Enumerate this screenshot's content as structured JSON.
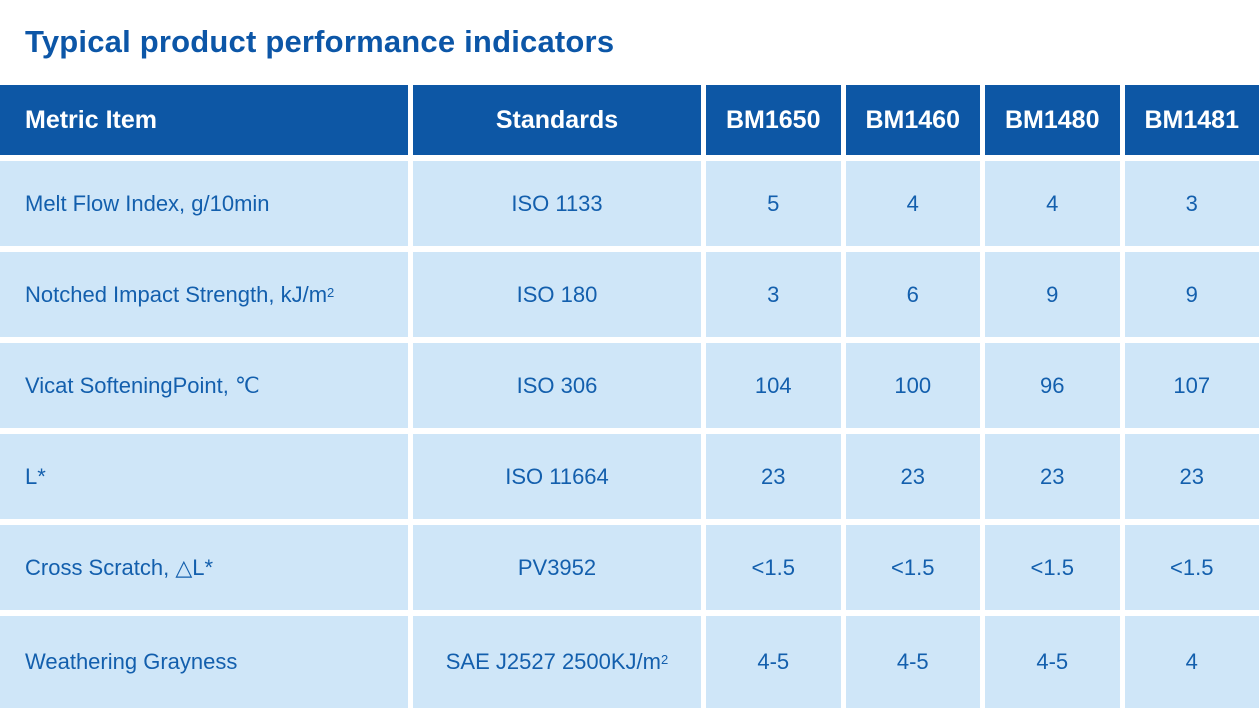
{
  "title": "Typical product performance indicators",
  "colors": {
    "header_background": "#0d57a5",
    "cell_background": "#cfe6f8",
    "cell_text": "#135fad",
    "title_text": "#0c56a7",
    "gutter": "#ffffff"
  },
  "table": {
    "headers": [
      {
        "label": "Metric Item"
      },
      {
        "label": "Standards"
      },
      {
        "label": "BM1650"
      },
      {
        "label": "BM1460"
      },
      {
        "label": "BM1480"
      },
      {
        "label": "BM1481"
      }
    ],
    "rows": [
      {
        "metric": "Melt Flow Index, g/10min",
        "metric_sup": "",
        "standard": "ISO 1133",
        "standard_sup": "",
        "values": [
          "5",
          "4",
          "4",
          "3"
        ]
      },
      {
        "metric": "Notched Impact Strength, kJ/m",
        "metric_sup": "2",
        "standard": "ISO 180",
        "standard_sup": "",
        "values": [
          "3",
          "6",
          "9",
          "9"
        ]
      },
      {
        "metric": "Vicat SofteningPoint, ℃",
        "metric_sup": "",
        "standard": "ISO 306",
        "standard_sup": "",
        "values": [
          "104",
          "100",
          "96",
          "107"
        ]
      },
      {
        "metric": "L*",
        "metric_sup": "",
        "standard": "ISO 11664",
        "standard_sup": "",
        "values": [
          "23",
          "23",
          "23",
          "23"
        ]
      },
      {
        "metric": "Cross Scratch, △L*",
        "metric_sup": "",
        "standard": "PV3952",
        "standard_sup": "",
        "values": [
          "<1.5",
          "<1.5",
          "<1.5",
          "<1.5"
        ]
      },
      {
        "metric": "Weathering Grayness",
        "metric_sup": "",
        "standard": "SAE J2527 2500KJ/m",
        "standard_sup": "2",
        "values": [
          "4-5",
          "4-5",
          "4-5",
          "4"
        ]
      }
    ]
  }
}
